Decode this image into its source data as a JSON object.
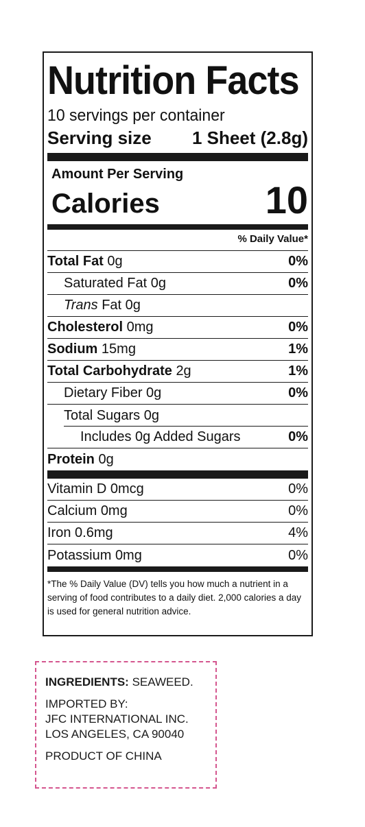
{
  "label": {
    "title": "Nutrition Facts",
    "servings_per_container": "10 servings per container",
    "serving_size_label": "Serving size",
    "serving_size_value": "1 Sheet (2.8g)",
    "amount_per_serving": "Amount Per Serving",
    "calories_label": "Calories",
    "calories_value": "10",
    "daily_value_header": "% Daily Value*",
    "nutrients": [
      {
        "name": "Total Fat",
        "amount": "0g",
        "dv": "0%"
      },
      {
        "name": "Saturated Fat",
        "amount": "0g",
        "dv": "0%"
      },
      {
        "name_italic": "Trans",
        "name": "Fat",
        "amount": "0g",
        "dv": ""
      },
      {
        "name": "Cholesterol",
        "amount": "0mg",
        "dv": "0%"
      },
      {
        "name": "Sodium",
        "amount": "15mg",
        "dv": "1%"
      },
      {
        "name": "Total Carbohydrate",
        "amount": "2g",
        "dv": "1%"
      },
      {
        "name": "Dietary Fiber",
        "amount": "0g",
        "dv": "0%"
      },
      {
        "name": "Total Sugars",
        "amount": "0g",
        "dv": ""
      },
      {
        "name": "Includes 0g Added Sugars",
        "amount": "",
        "dv": "0%"
      },
      {
        "name": "Protein",
        "amount": "0g",
        "dv": ""
      }
    ],
    "vitamins": [
      {
        "name": "Vitamin D",
        "amount": "0mcg",
        "dv": "0%"
      },
      {
        "name": "Calcium",
        "amount": "0mg",
        "dv": "0%"
      },
      {
        "name": "Iron",
        "amount": "0.6mg",
        "dv": "4%"
      },
      {
        "name": "Potassium",
        "amount": "0mg",
        "dv": "0%"
      }
    ],
    "footnote": "*The % Daily Value (DV) tells you how much a nutrient in a serving of food contributes to a daily diet. 2,000 calories a day is used for general nutrition advice."
  },
  "ingredients": {
    "title": "INGREDIENTS:",
    "value": "SEAWEED.",
    "imported_by": "IMPORTED BY:",
    "company": "JFC INTERNATIONAL INC.",
    "address": "LOS ANGELES, CA 90040",
    "origin": "PRODUCT OF CHINA",
    "border_color": "#d4558e"
  }
}
